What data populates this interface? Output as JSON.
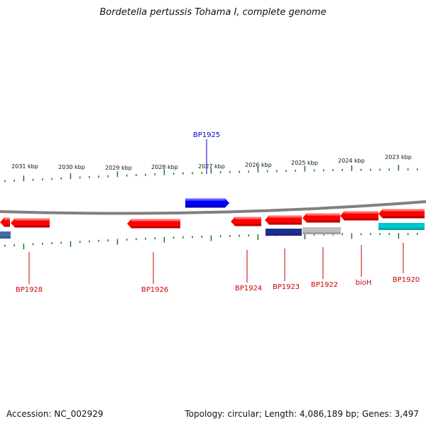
{
  "title": "Bordetella pertussis Tohama I, complete genome",
  "footer": {
    "accession": "Accession: NC_002929",
    "summary": "Topology: circular; Length: 4,086,189 bp; Genes: 3,497"
  },
  "ruler_labels": [
    "2031 kbp",
    "2030 kbp",
    "2029 kbp",
    "2028 kbp",
    "2027 kbp",
    "2026 kbp",
    "2025 kbp",
    "2024 kbp",
    "2023 kbp"
  ],
  "genes": [
    {
      "label": "",
      "strand": "+",
      "color": "#ff0000"
    },
    {
      "label": "BP1928",
      "strand": "+",
      "color": "#ff0000"
    },
    {
      "label": "BP1926",
      "strand": "+",
      "color": "#ff0000"
    },
    {
      "label": "BP1925",
      "strand": "-",
      "color": "#0000ff"
    },
    {
      "label": "BP1924",
      "strand": "+",
      "color": "#ff0000"
    },
    {
      "label": "BP1923",
      "strand": "+",
      "color": "#ff0000"
    },
    {
      "label": "BP1922",
      "strand": "+",
      "color": "#ff0000"
    },
    {
      "label": "bioH",
      "strand": "+",
      "color": "#ff0000"
    },
    {
      "label": "BP1920",
      "strand": "+",
      "color": "#ff0000"
    }
  ],
  "feature_tracks": [
    {
      "color": "#1f2f8f"
    },
    {
      "color": "#bfbfbf"
    },
    {
      "color": "#00c8c8"
    },
    {
      "color": "#3a6fa8"
    }
  ],
  "colors": {
    "gene_forward": "#ff0000",
    "gene_reverse": "#0000ff",
    "label_forward": "#cc0000",
    "label_reverse": "#0000cc",
    "ticks": "#1a7a1a",
    "backbone": "#808080"
  }
}
